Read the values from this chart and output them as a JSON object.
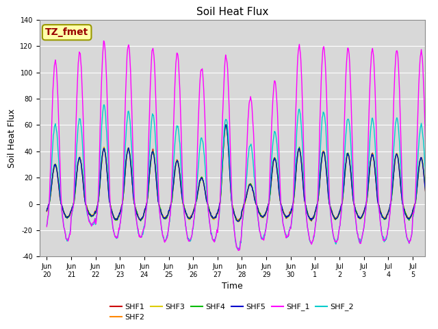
{
  "title": "Soil Heat Flux",
  "xlabel": "Time",
  "ylabel": "Soil Heat Flux",
  "ylim": [
    -40,
    140
  ],
  "background_color": "#ffffff",
  "plot_bg_color": "#d8d8d8",
  "annotation_text": "TZ_fmet",
  "annotation_bg": "#ffffaa",
  "annotation_border": "#999900",
  "annotation_text_color": "#990000",
  "series_colors": {
    "SHF1": "#cc0000",
    "SHF2": "#ff8800",
    "SHF3": "#ddcc00",
    "SHF4": "#00bb00",
    "SHF5": "#0000cc",
    "SHF_1": "#ff00ff",
    "SHF_2": "#00cccc"
  },
  "tick_labels": [
    "Jun\n20",
    "Jun\n21",
    "Jun\n22",
    "Jun\n23",
    "Jun\n24",
    "Jun\n25",
    "Jun\n26",
    "Jun\n27",
    "Jun\n28",
    "Jun\n29",
    "Jun\n30",
    "Jul\n1",
    "Jul\n2",
    "Jul\n3",
    "Jul\n4",
    "Jul\n5"
  ],
  "yticks": [
    -40,
    -20,
    0,
    20,
    40,
    60,
    80,
    100,
    120,
    140
  ],
  "title_fontsize": 11,
  "axis_label_fontsize": 9,
  "tick_fontsize": 7,
  "legend_fontsize": 8,
  "shf1_peaks": [
    30,
    35,
    42,
    42,
    40,
    33,
    20,
    60,
    15,
    35,
    42,
    40,
    38,
    38,
    38,
    35
  ],
  "shf1_troughs": [
    -10,
    -9,
    -12,
    -12,
    -11,
    -11,
    -11,
    -13,
    -10,
    -10,
    -12,
    -11,
    -11,
    -11,
    -11,
    -9
  ],
  "shfM_peaks": [
    109,
    115,
    123,
    121,
    118,
    115,
    104,
    113,
    81,
    93,
    121,
    120,
    119,
    118,
    117,
    116
  ],
  "shfM_troughs": [
    -27,
    -16,
    -26,
    -25,
    -28,
    -28,
    -28,
    -35,
    -27,
    -25,
    -30,
    -29,
    -29,
    -28,
    -29,
    -16
  ],
  "shfC_peaks": [
    60,
    65,
    75,
    70,
    68,
    60,
    50,
    65,
    45,
    55,
    72,
    70,
    65,
    65,
    65,
    60
  ],
  "shfC_troughs": [
    -27,
    -16,
    -26,
    -25,
    -28,
    -28,
    -28,
    -35,
    -27,
    -25,
    -30,
    -29,
    -29,
    -28,
    -29,
    -16
  ]
}
